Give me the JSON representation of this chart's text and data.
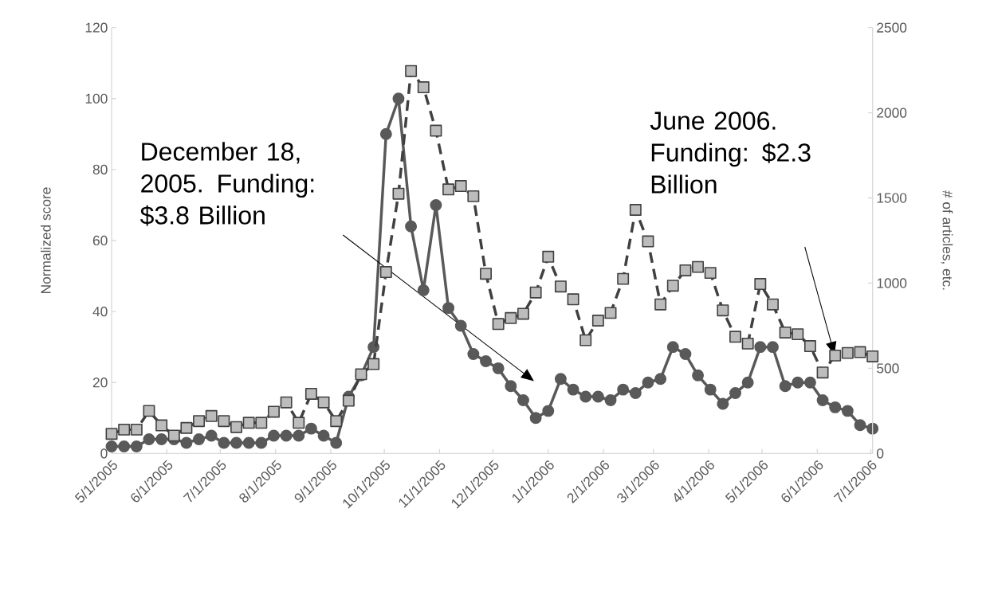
{
  "chart_data": {
    "type": "line",
    "ylabel": "Normalized score",
    "y2label": "# of articles, etc.",
    "x": [
      "2005-05-01",
      "2005-05-08",
      "2005-05-15",
      "2005-05-22",
      "2005-05-29",
      "2005-06-05",
      "2005-06-12",
      "2005-06-19",
      "2005-06-26",
      "2005-07-03",
      "2005-07-10",
      "2005-07-17",
      "2005-07-24",
      "2005-07-31",
      "2005-08-07",
      "2005-08-14",
      "2005-08-21",
      "2005-08-28",
      "2005-09-04",
      "2005-09-11",
      "2005-09-18",
      "2005-09-25",
      "2005-10-02",
      "2005-10-09",
      "2005-10-16",
      "2005-10-23",
      "2005-10-30",
      "2005-11-06",
      "2005-11-13",
      "2005-11-20",
      "2005-11-27",
      "2005-12-04",
      "2005-12-11",
      "2005-12-18",
      "2005-12-25",
      "2006-01-01",
      "2006-01-08",
      "2006-01-15",
      "2006-01-22",
      "2006-01-29",
      "2006-02-05",
      "2006-02-12",
      "2006-02-19",
      "2006-02-26",
      "2006-03-05",
      "2006-03-12",
      "2006-03-19",
      "2006-03-26",
      "2006-04-02",
      "2006-04-09",
      "2006-04-16",
      "2006-04-23",
      "2006-04-30",
      "2006-05-07",
      "2006-05-14",
      "2006-05-21",
      "2006-05-28",
      "2006-06-04",
      "2006-06-11",
      "2006-06-18",
      "2006-06-25",
      "2006-07-02"
    ],
    "series": [
      {
        "color": "#595959",
        "marker": "circle",
        "line_style": "solid",
        "values": [
          2,
          2,
          2,
          4,
          4,
          4,
          3,
          4,
          5,
          3,
          3,
          3,
          3,
          5,
          5,
          5,
          7,
          5,
          3,
          16,
          22,
          30,
          90,
          100,
          64,
          46,
          70,
          41,
          36,
          28,
          26,
          24,
          19,
          15,
          10,
          12,
          21,
          18,
          16,
          16,
          15,
          18,
          17,
          20,
          21,
          30,
          28,
          22,
          18,
          14,
          17,
          20,
          30,
          30,
          19,
          20,
          20,
          15,
          13,
          12,
          8,
          7
        ]
      },
      {
        "color": "#404040",
        "marker": "square",
        "line_style": "dashed",
        "axis": "y2",
        "values": [
          115,
          140,
          140,
          250,
          165,
          105,
          150,
          190,
          220,
          190,
          155,
          180,
          180,
          245,
          300,
          180,
          350,
          300,
          190,
          310,
          465,
          525,
          1065,
          1525,
          2245,
          2150,
          1895,
          1550,
          1570,
          1510,
          1055,
          760,
          795,
          820,
          945,
          1155,
          980,
          905,
          665,
          780,
          825,
          1025,
          1430,
          1245,
          875,
          985,
          1075,
          1095,
          1060,
          840,
          685,
          645,
          995,
          875,
          710,
          700,
          630,
          475,
          575,
          590,
          595,
          570
        ]
      }
    ],
    "xlim": [
      "2005-05-01",
      "2006-07-02"
    ],
    "xticks": [
      {
        "value": "2005-05-01",
        "label": "5/1/2005"
      },
      {
        "value": "2005-06-01",
        "label": "6/1/2005"
      },
      {
        "value": "2005-07-01",
        "label": "7/1/2005"
      },
      {
        "value": "2005-08-01",
        "label": "8/1/2005"
      },
      {
        "value": "2005-09-01",
        "label": "9/1/2005"
      },
      {
        "value": "2005-10-01",
        "label": "10/1/2005"
      },
      {
        "value": "2005-11-01",
        "label": "11/1/2005"
      },
      {
        "value": "2005-12-01",
        "label": "12/1/2005"
      },
      {
        "value": "2006-01-01",
        "label": "1/1/2006"
      },
      {
        "value": "2006-02-01",
        "label": "2/1/2006"
      },
      {
        "value": "2006-03-01",
        "label": "3/1/2006"
      },
      {
        "value": "2006-04-01",
        "label": "4/1/2006"
      },
      {
        "value": "2006-05-01",
        "label": "5/1/2006"
      },
      {
        "value": "2006-06-01",
        "label": "6/1/2006"
      },
      {
        "value": "2006-07-01",
        "label": "7/1/2006"
      }
    ],
    "ylim": [
      0,
      120
    ],
    "yticks": [
      0,
      20,
      40,
      60,
      80,
      100,
      120
    ],
    "y2lim": [
      0,
      2500
    ],
    "y2ticks": [
      0,
      500,
      1000,
      1500,
      2000,
      2500
    ],
    "annotations": [
      "December 18, 2005. Funding: $3.8 Billion",
      "June 2006. Funding: $2.3 Billion"
    ],
    "grid": false
  }
}
